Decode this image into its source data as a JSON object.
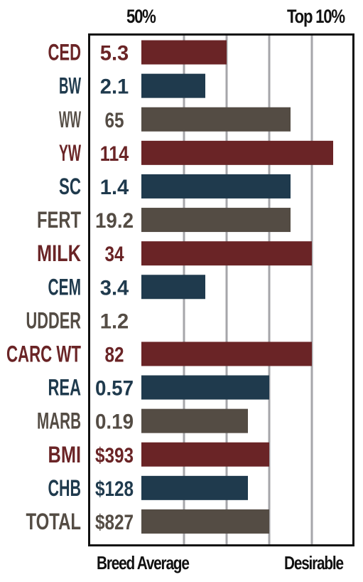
{
  "chart_data": {
    "type": "bar",
    "orientation": "horizontal",
    "header_left": "50%",
    "header_right": "Top 10%",
    "footer_left": "Breed Average",
    "footer_right": "Desirable",
    "categories": [
      "CED",
      "BW",
      "WW",
      "YW",
      "SC",
      "FERT",
      "MILK",
      "CEM",
      "UDDER",
      "CARC WT",
      "REA",
      "MARB",
      "BMI",
      "CHB",
      "TOTAL"
    ],
    "value_labels": [
      "5.3",
      "2.1",
      "65",
      "114",
      "1.4",
      "19.2",
      "34",
      "3.4",
      "1.2",
      "82",
      "0.57",
      "0.19",
      "$393",
      "$128",
      "$827"
    ],
    "values": [
      0.4,
      0.3,
      0.7,
      0.9,
      0.7,
      0.7,
      0.8,
      0.3,
      0.0,
      0.8,
      0.6,
      0.5,
      0.6,
      0.5,
      0.6
    ],
    "grid": true,
    "colors": {
      "red": "#6a2426",
      "blue": "#1f3a4d",
      "gray": "#544c44",
      "grid": "#a6a6aa",
      "frame": "#111111"
    },
    "bar_colors": [
      "red",
      "blue",
      "gray",
      "red",
      "blue",
      "gray",
      "red",
      "blue",
      "gray",
      "red",
      "blue",
      "gray",
      "red",
      "blue",
      "gray"
    ]
  }
}
